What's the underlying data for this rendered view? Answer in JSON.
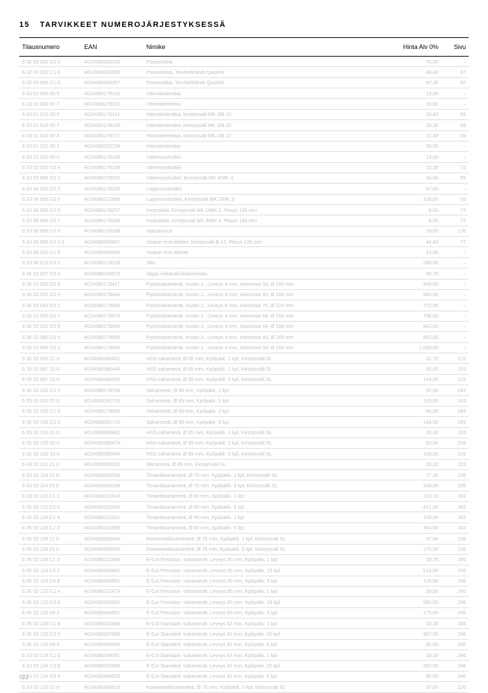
{
  "heading_num": "15",
  "heading_text": "TARVIKKEET NUMEROJÄRJESTYKSESSÄ",
  "page_number": "522",
  "columns": {
    "tilaus": "Tilausnumero",
    "ean": "EAN",
    "nimike": "Nimike",
    "hinta": "Hinta Alv 0%",
    "sivu": "Sivu"
  },
  "col_widths": {
    "tilaus": 90,
    "ean": 90,
    "hinta": 60,
    "sivu": 40
  },
  "colors": {
    "body_text_muted": "#bfbfbf",
    "header_text": "#000000",
    "row_border": "#dddddd",
    "header_border": "#000000",
    "background": "#ffffff"
  },
  "typography": {
    "heading_fontsize": 11,
    "header_fontsize": 9,
    "cell_fontsize": 7.2,
    "pagenum_fontsize": 8
  },
  "rows": [
    [
      "6 32 09 001 C0 0",
      "4014586305153",
      "Poraistukka",
      "70,00",
      "–"
    ],
    [
      "6 32 09 002 C1 0",
      "4014586392080",
      "Poraistukka, Tarvikeliitäntä QuickIN",
      "48,40",
      "87"
    ],
    [
      "6 32 09 005 C1 0",
      "4014586404357",
      "Poraistukka, Tarvikeliitäntä QuickIN",
      "67,30",
      "87"
    ],
    [
      "6 33 01 005 00 5",
      "4014586178103",
      "Hännäkelenkka",
      "13,60",
      "–"
    ],
    [
      "6 33 01 008 00 7",
      "4014586178110",
      "Hännäkelenkka",
      "15,60",
      "–"
    ],
    [
      "6 33 01 012 00 5",
      "4014586178141",
      "Hännäkelenkka, Kiristysväli MK 3/B 16",
      "18,40",
      "59"
    ],
    [
      "6 33 01 014 00 7",
      "4014586178165",
      "Hännäkelenkka, Kiristysväli MK 3/B 22",
      "26,30",
      "59"
    ],
    [
      "6 33 01 016 00 4",
      "4014586178172",
      "Hännäkelenkka, Kiristysväli MK 4/B 22",
      "21,40",
      "59"
    ],
    [
      "6 33 01 021 00 1",
      "4014586223704",
      "Hännäkelenkka",
      "56,60",
      "–"
    ],
    [
      "6 33 02 002 00 0",
      "4014586178189",
      "Vähennysholkki",
      "13,60",
      "–"
    ],
    [
      "6 33 02 003 C0 4",
      "4014586178196",
      "Vähennysholkki",
      "23,30",
      "73"
    ],
    [
      "6 33 02 004 C0 2",
      "4014586178202",
      "Vähennysholkki, Kiristysväli MK 4/MK 3",
      "34,60",
      "59"
    ],
    [
      "6 33 04 003 C0 2",
      "4014586178226",
      "Laajennusholkki",
      "67,00",
      "–"
    ],
    [
      "6 33 04 005 C0 0",
      "4014586312996",
      "Laajennusholkki, Kiristysväli MK 2/MK 3",
      "208,00",
      "59"
    ],
    [
      "6 33 06 003 C0 5",
      "4014586178257",
      "Irrotuskiila, Kiristysväli MK 1/MK 2, Pituus 140 mm",
      "9,60",
      "73"
    ],
    [
      "6 33 06 004 C0 1",
      "4014586178264",
      "Irrotuskiila, Kiristysväli MK 3/MK 4, Pituus 190 mm",
      "9,90",
      "73"
    ],
    [
      "6 33 06 008 C0 8",
      "4014586178288",
      "Hattutuurna",
      "18,60",
      "178"
    ],
    [
      "6 33 06 009 C0 1 5",
      "4014586290867",
      "Istukan irrot.laitteet, Kiristysväli B 12, Pituus 126 mm",
      "44,40",
      "77"
    ],
    [
      "6 33 06 010 C1 5",
      "4014586380094",
      "Istukan irrot.laitteet",
      "43,90",
      "–"
    ],
    [
      "6 33 06 013 C0 2",
      "4014586178318",
      "Sillu",
      "268,00",
      "–"
    ],
    [
      "6 34 02 027 C0 0",
      "4014586186672",
      "Säppi reikäsahoihokoteloita",
      "69,70",
      "–"
    ],
    [
      "6 35 02 023 C0 6",
      "4014586178417",
      "Pyörösahanterät, muoto 1., Leveys 4 mm, Hammast 50, Ø 160 mm",
      "448,00",
      "–"
    ],
    [
      "6 35 02 037 C0 9",
      "4014586178448",
      "Pyörösahanterät, muoto 1., Leveys 4 mm, Hammast 60, Ø 180 mm",
      "564,00",
      "–"
    ],
    [
      "6 35 02 041 C0 1",
      "4014586178455",
      "Pyörösahanterät, muoto 1., Leveys 5 mm, Hammast 70, Ø 220 mm",
      "772,00",
      "–"
    ],
    [
      "6 35 02 053 C0 7",
      "4014586178479",
      "Pyörösahanterät, muoto 1., Leveys 4 mm, Hammast 64, Ø 200 mm",
      "736,00",
      "–"
    ],
    [
      "6 35 02 061 C0 9",
      "4014586178493",
      "Pyörösahanterät, muoto 3., Leveys 4 mm, Hammast 44, Ø 180 mm",
      "842,00",
      "–"
    ],
    [
      "6 35 02 080 C0 9",
      "4014586178585",
      "Pyörösahanterät, muoto 3., Leveys 4 mm, Hammast 40, Ø 160 mm",
      "882,00",
      "–"
    ],
    [
      "6 35 02 084 C0 2",
      "4014586178608",
      "Pyörösahanterät, muoto 3., Leveys 4 mm, Hammast 50, Ø 200 mm",
      "1.000,00",
      "–"
    ],
    [
      "6 35 02 097 21 0",
      "4014586386431",
      "HSS-sahanterä, Ø 65 mm, Kpl/pakk. 1 kpl, Kiristysväli SL",
      "31,70",
      "215"
    ],
    [
      "6 35 02 097 22 0",
      "4014586386448",
      "HSS-sahanterä, Ø 65 mm, Kpl/pakk. 2 kpl, Kiristysväli SL",
      "60,00",
      "215"
    ],
    [
      "6 35 02 097 23 0",
      "4014586386455",
      "HSS-sahanterä, Ø 65 mm, Kpl/pakk. 5 kpl, Kiristysväli SL",
      "144,00",
      "215"
    ],
    [
      "6 35 02 102 C1 5",
      "4014586178783",
      "Sahanterät, Ø 85 mm, Kpl/pakk. 2 kpl",
      "57,50",
      "243"
    ],
    [
      "6 35 02 102 07 0",
      "4014586291703",
      "Sahanterät, Ø 85 mm, Kpl/pakk. 5 kpl",
      "135,00",
      "243"
    ],
    [
      "6 35 02 103 C1 0",
      "4014586178806",
      "Sahanterät, Ø 80 mm, Kpl/pakk. 2 kpl",
      "60,00",
      "243"
    ],
    [
      "6 35 02 103 C2 0",
      "4014586291710",
      "Sahanterät, Ø 80 mm, Kpl/pakk. 5 kpl",
      "148,00",
      "243"
    ],
    [
      "6 35 02 103 21 0",
      "4014586386462",
      "HSS-sahanterä, Ø 85 mm, Kpl/pakk. 1 kpl, Kiristysväli SL",
      "33,30",
      "215"
    ],
    [
      "6 35 02 103 22 0",
      "4014586386479",
      "HSS-sahanterä, Ø 85 mm, Kpl/pakk. 2 kpl, Kiristysväli SL",
      "63,60",
      "215"
    ],
    [
      "6 35 02 103 23 0",
      "4014586386486",
      "HSS-sahanterä, Ø 85 mm, Kpl/pakk. 5 kpl, Kiristysväli SL",
      "150,00",
      "215"
    ],
    [
      "6 33 02 113 21 0",
      "4014586500232",
      "Sahanterä, Ø 85 mm, Kiristysväli SL",
      "29,20",
      "215"
    ],
    [
      "6 33 02 114 21 0",
      "4014586500256",
      "Timanttisahanterä, Ø 76 mm, Kpl/pakk. 1 kpl, Kiristysväli SL",
      "77,30",
      "226"
    ],
    [
      "6 33 02 114 23 0",
      "4014586500249",
      "Timanttisahanterä, Ø 76 mm, Kpl/pakk. 5 kpl, Kiristysväli SL",
      "348,00",
      "226"
    ],
    [
      "6 33 02 115 C1 1",
      "4014586231914",
      "Timanttisahanterä, Ø 80 mm, Kpl/pakk. 1 kpl",
      "102,15",
      "242"
    ],
    [
      "6 35 02 115 C2 0",
      "4014586231068",
      "Timanttisahanterä, Ø 80 mm, Kpl/pakk. 5 kpl",
      "412,00",
      "242"
    ],
    [
      "6 35 02 118 C1 4",
      "4014586231921",
      "Timanttisahanterä, Ø 80 mm, Kpl/pakk. 1 kpl",
      "100,00",
      "242"
    ],
    [
      "6 35 02 118 C2 0",
      "4014586231099",
      "Timanttisahanterä, Ø 80 mm, Kpl/pakk. 5 kpl",
      "464,00",
      "242"
    ],
    [
      "6 35 02 118 21 0",
      "4014586385493",
      "Kovametallisahanterä, Ø 75 mm, Kpl/pakk. 1 kpl, Kiristysväli SL",
      "37,60",
      "226"
    ],
    [
      "6 35 02 118 23 0",
      "4014586385509",
      "Kovametallisahanterä, Ø 75 mm, Kpl/pakk. 5 kpl, Kiristysväli SL",
      "170,00",
      "226"
    ],
    [
      "6 35 02 119 C1 0",
      "4014586222448",
      "E-Cut Precision -sahanterät, Leveys 35 mm, Kpl/pakk. 1 kpl",
      "28,70",
      "245"
    ],
    [
      "6 35 02 119 C3 2",
      "4014586356882",
      "E-Cut Precision -sahanterät, Leveys 35 mm, Kpl/pakk. 25 kpl",
      "514,00",
      "245"
    ],
    [
      "6 35 02 119 C4 8",
      "4014586384861",
      "E-Cut Precision -sahanterät, Leveys 35 mm, Kpl/pakk. 5 kpl",
      "118,90",
      "245"
    ],
    [
      "6 35 02 122 C1 4",
      "4014586222479",
      "E-Cut Precision -sahanterät, Leveys 65 mm, Kpl/pakk. 1 kpl",
      "28,00",
      "245"
    ],
    [
      "6 35 02 122 C3 6",
      "4014586356882",
      "E-Cut Precision -sahanterät, Leveys 65 mm, Kpl/pakk. 25 kpl",
      "556,00",
      "245"
    ],
    [
      "6 35 02 122 04 2",
      "4014586384892",
      "E-Cut Precision -sahanterät, Leveys 65 mm, Kpl/pakk. 5 kpl",
      "175,00",
      "245"
    ],
    [
      "6 35 02 123 C1 8",
      "4014586302486",
      "E-Cut Standard -sahanterät, Leveys 32 mm, Kpl/pakk. 1 kpl",
      "18,30",
      "245"
    ],
    [
      "6 35 02 123 C3 0",
      "4014586207893",
      "E-Cut Standard -sahanterät, Leveys 32 mm, Kpl/pakk. 25 kpl",
      "367,00",
      "245"
    ],
    [
      "6 35 02 123 04 6",
      "4014586384908",
      "E-Cut Standard -sahanterät, Leveys 32 mm, Kpl/pakk. 5 kpl",
      "82,00",
      "245"
    ],
    [
      "6 33 02 124 C1 6",
      "4014586298361",
      "E-Cut Standard -sahanterät, Leveys 42 mm, Kpl/pakk. 1 kpl",
      "18,10",
      "246"
    ],
    [
      "6 33 02 124 C3 8",
      "4014586250908",
      "E-Cut Standard -sahanterät, Leveys 42 mm, Kpl/pakk. 25 kpl",
      "382,00",
      "246"
    ],
    [
      "6 33 02 124 C4 4",
      "4014586384915",
      "E-Cut Standard -sahanterät, Leveys 42 mm, Kpl/pakk. 5 kpl",
      "86,60",
      "246"
    ],
    [
      "6 33 02 125 21 0",
      "4014586386516",
      "Kovametallisahanterä, Ø 75 mm, Kpl/pakk. 1 kpl, Kiristysväli SL",
      "37,60",
      "226"
    ]
  ]
}
